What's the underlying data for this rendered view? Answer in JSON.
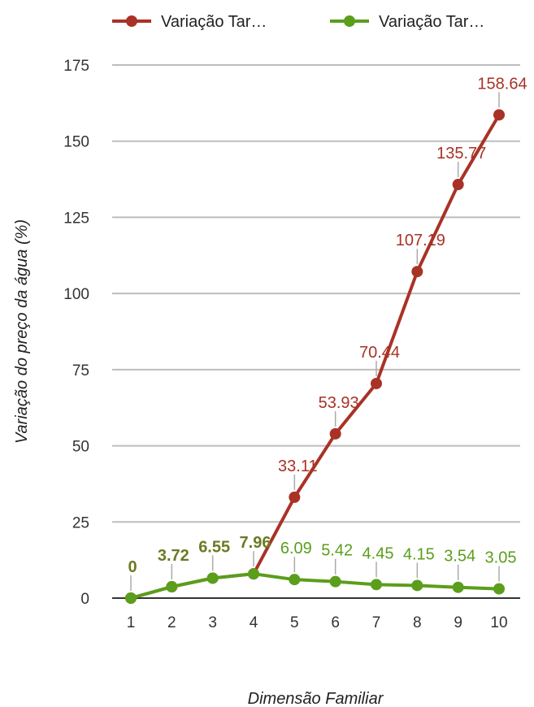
{
  "chart_data": {
    "type": "line",
    "title": "",
    "xlabel": "Dimensão Familiar",
    "ylabel": "Variação do preço da água (%)",
    "x": [
      1,
      2,
      3,
      4,
      5,
      6,
      7,
      8,
      9,
      10
    ],
    "ylim": [
      0,
      175
    ],
    "yticks": [
      0,
      25,
      50,
      75,
      100,
      125,
      150,
      175
    ],
    "grid": true,
    "legend_position": "top",
    "series": [
      {
        "name": "Variação Tar…",
        "color": "#a93226",
        "values": [
          0,
          3.72,
          6.55,
          7.96,
          33.11,
          53.93,
          70.44,
          107.19,
          135.77,
          158.64
        ],
        "labels": [
          "",
          "",
          "",
          "",
          "33.11",
          "53.93",
          "70.44",
          "107.19",
          "135.77",
          "158.64"
        ]
      },
      {
        "name": "Variação Tar…",
        "color": "#5a9e1b",
        "values": [
          0,
          3.72,
          6.55,
          7.96,
          6.09,
          5.42,
          4.45,
          4.15,
          3.54,
          3.05
        ],
        "labels": [
          "0",
          "3.72",
          "6.55",
          "7.96",
          "6.09",
          "5.42",
          "4.45",
          "4.15",
          "3.54",
          "3.05"
        ]
      }
    ]
  }
}
